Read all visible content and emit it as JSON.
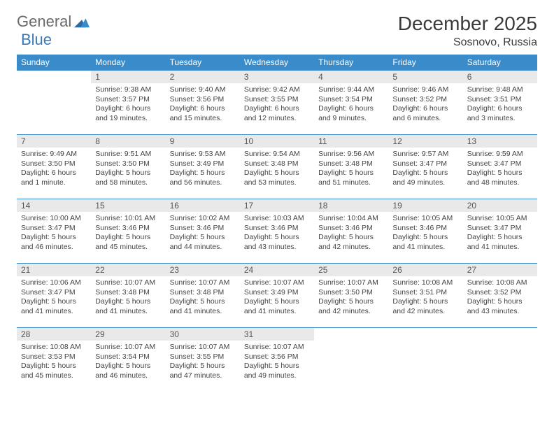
{
  "brand": {
    "part1": "General",
    "part2": "Blue"
  },
  "colors": {
    "header_bg": "#3a8bc9",
    "header_text": "#ffffff",
    "daynum_bg": "#e9e9e9",
    "row_border": "#3a8bc9",
    "text": "#3a3a3a"
  },
  "title": "December 2025",
  "location": "Sosnovo, Russia",
  "weekdays": [
    "Sunday",
    "Monday",
    "Tuesday",
    "Wednesday",
    "Thursday",
    "Friday",
    "Saturday"
  ],
  "weeks": [
    [
      {
        "num": "",
        "sunrise": "",
        "sunset": "",
        "daylight": ""
      },
      {
        "num": "1",
        "sunrise": "Sunrise: 9:38 AM",
        "sunset": "Sunset: 3:57 PM",
        "daylight": "Daylight: 6 hours and 19 minutes."
      },
      {
        "num": "2",
        "sunrise": "Sunrise: 9:40 AM",
        "sunset": "Sunset: 3:56 PM",
        "daylight": "Daylight: 6 hours and 15 minutes."
      },
      {
        "num": "3",
        "sunrise": "Sunrise: 9:42 AM",
        "sunset": "Sunset: 3:55 PM",
        "daylight": "Daylight: 6 hours and 12 minutes."
      },
      {
        "num": "4",
        "sunrise": "Sunrise: 9:44 AM",
        "sunset": "Sunset: 3:54 PM",
        "daylight": "Daylight: 6 hours and 9 minutes."
      },
      {
        "num": "5",
        "sunrise": "Sunrise: 9:46 AM",
        "sunset": "Sunset: 3:52 PM",
        "daylight": "Daylight: 6 hours and 6 minutes."
      },
      {
        "num": "6",
        "sunrise": "Sunrise: 9:48 AM",
        "sunset": "Sunset: 3:51 PM",
        "daylight": "Daylight: 6 hours and 3 minutes."
      }
    ],
    [
      {
        "num": "7",
        "sunrise": "Sunrise: 9:49 AM",
        "sunset": "Sunset: 3:50 PM",
        "daylight": "Daylight: 6 hours and 1 minute."
      },
      {
        "num": "8",
        "sunrise": "Sunrise: 9:51 AM",
        "sunset": "Sunset: 3:50 PM",
        "daylight": "Daylight: 5 hours and 58 minutes."
      },
      {
        "num": "9",
        "sunrise": "Sunrise: 9:53 AM",
        "sunset": "Sunset: 3:49 PM",
        "daylight": "Daylight: 5 hours and 56 minutes."
      },
      {
        "num": "10",
        "sunrise": "Sunrise: 9:54 AM",
        "sunset": "Sunset: 3:48 PM",
        "daylight": "Daylight: 5 hours and 53 minutes."
      },
      {
        "num": "11",
        "sunrise": "Sunrise: 9:56 AM",
        "sunset": "Sunset: 3:48 PM",
        "daylight": "Daylight: 5 hours and 51 minutes."
      },
      {
        "num": "12",
        "sunrise": "Sunrise: 9:57 AM",
        "sunset": "Sunset: 3:47 PM",
        "daylight": "Daylight: 5 hours and 49 minutes."
      },
      {
        "num": "13",
        "sunrise": "Sunrise: 9:59 AM",
        "sunset": "Sunset: 3:47 PM",
        "daylight": "Daylight: 5 hours and 48 minutes."
      }
    ],
    [
      {
        "num": "14",
        "sunrise": "Sunrise: 10:00 AM",
        "sunset": "Sunset: 3:47 PM",
        "daylight": "Daylight: 5 hours and 46 minutes."
      },
      {
        "num": "15",
        "sunrise": "Sunrise: 10:01 AM",
        "sunset": "Sunset: 3:46 PM",
        "daylight": "Daylight: 5 hours and 45 minutes."
      },
      {
        "num": "16",
        "sunrise": "Sunrise: 10:02 AM",
        "sunset": "Sunset: 3:46 PM",
        "daylight": "Daylight: 5 hours and 44 minutes."
      },
      {
        "num": "17",
        "sunrise": "Sunrise: 10:03 AM",
        "sunset": "Sunset: 3:46 PM",
        "daylight": "Daylight: 5 hours and 43 minutes."
      },
      {
        "num": "18",
        "sunrise": "Sunrise: 10:04 AM",
        "sunset": "Sunset: 3:46 PM",
        "daylight": "Daylight: 5 hours and 42 minutes."
      },
      {
        "num": "19",
        "sunrise": "Sunrise: 10:05 AM",
        "sunset": "Sunset: 3:46 PM",
        "daylight": "Daylight: 5 hours and 41 minutes."
      },
      {
        "num": "20",
        "sunrise": "Sunrise: 10:05 AM",
        "sunset": "Sunset: 3:47 PM",
        "daylight": "Daylight: 5 hours and 41 minutes."
      }
    ],
    [
      {
        "num": "21",
        "sunrise": "Sunrise: 10:06 AM",
        "sunset": "Sunset: 3:47 PM",
        "daylight": "Daylight: 5 hours and 41 minutes."
      },
      {
        "num": "22",
        "sunrise": "Sunrise: 10:07 AM",
        "sunset": "Sunset: 3:48 PM",
        "daylight": "Daylight: 5 hours and 41 minutes."
      },
      {
        "num": "23",
        "sunrise": "Sunrise: 10:07 AM",
        "sunset": "Sunset: 3:48 PM",
        "daylight": "Daylight: 5 hours and 41 minutes."
      },
      {
        "num": "24",
        "sunrise": "Sunrise: 10:07 AM",
        "sunset": "Sunset: 3:49 PM",
        "daylight": "Daylight: 5 hours and 41 minutes."
      },
      {
        "num": "25",
        "sunrise": "Sunrise: 10:07 AM",
        "sunset": "Sunset: 3:50 PM",
        "daylight": "Daylight: 5 hours and 42 minutes."
      },
      {
        "num": "26",
        "sunrise": "Sunrise: 10:08 AM",
        "sunset": "Sunset: 3:51 PM",
        "daylight": "Daylight: 5 hours and 42 minutes."
      },
      {
        "num": "27",
        "sunrise": "Sunrise: 10:08 AM",
        "sunset": "Sunset: 3:52 PM",
        "daylight": "Daylight: 5 hours and 43 minutes."
      }
    ],
    [
      {
        "num": "28",
        "sunrise": "Sunrise: 10:08 AM",
        "sunset": "Sunset: 3:53 PM",
        "daylight": "Daylight: 5 hours and 45 minutes."
      },
      {
        "num": "29",
        "sunrise": "Sunrise: 10:07 AM",
        "sunset": "Sunset: 3:54 PM",
        "daylight": "Daylight: 5 hours and 46 minutes."
      },
      {
        "num": "30",
        "sunrise": "Sunrise: 10:07 AM",
        "sunset": "Sunset: 3:55 PM",
        "daylight": "Daylight: 5 hours and 47 minutes."
      },
      {
        "num": "31",
        "sunrise": "Sunrise: 10:07 AM",
        "sunset": "Sunset: 3:56 PM",
        "daylight": "Daylight: 5 hours and 49 minutes."
      },
      {
        "num": "",
        "sunrise": "",
        "sunset": "",
        "daylight": ""
      },
      {
        "num": "",
        "sunrise": "",
        "sunset": "",
        "daylight": ""
      },
      {
        "num": "",
        "sunrise": "",
        "sunset": "",
        "daylight": ""
      }
    ]
  ]
}
